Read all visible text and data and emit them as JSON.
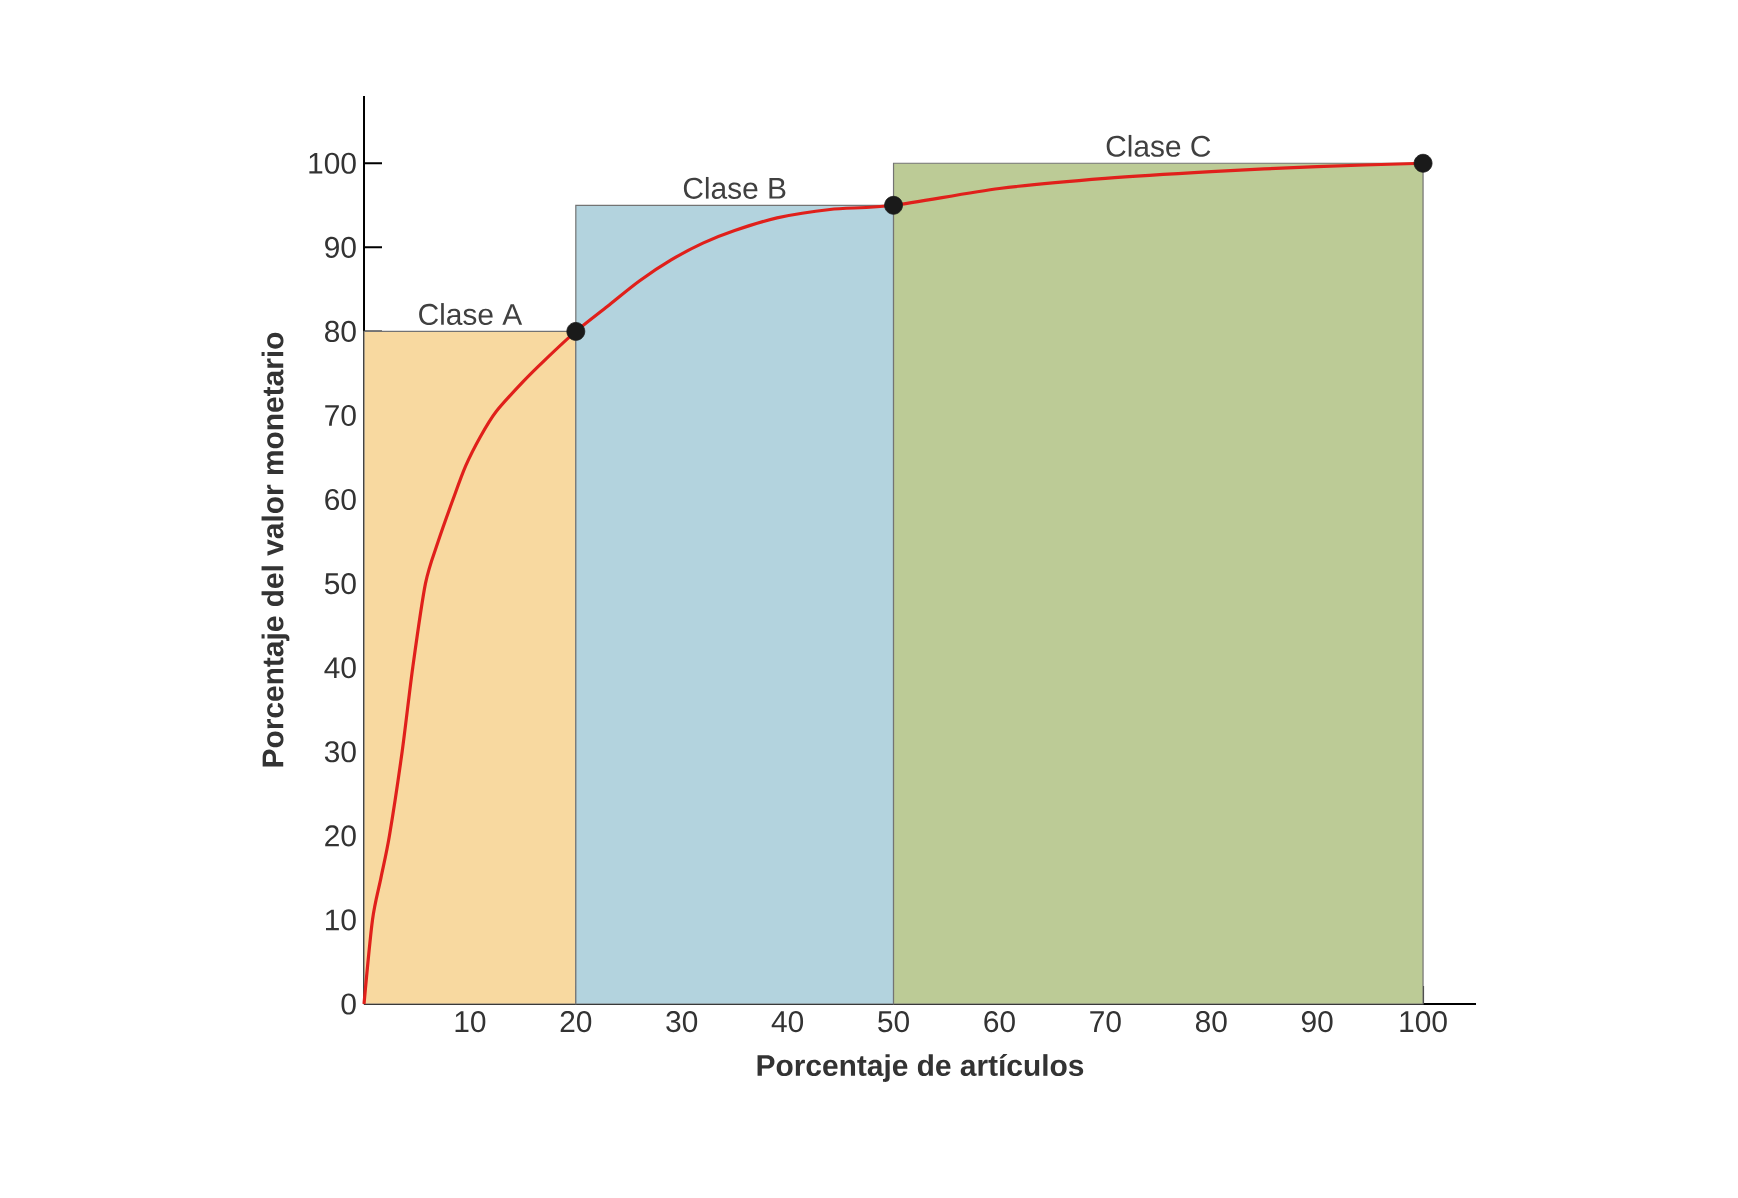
{
  "chart_data": {
    "type": "area",
    "xlabel": "Porcentaje de artículos",
    "ylabel": "Porcentaje del valor monetario",
    "xlim": [
      0,
      105
    ],
    "ylim": [
      0,
      108
    ],
    "xticks": [
      10,
      20,
      30,
      40,
      50,
      60,
      70,
      80,
      90,
      100
    ],
    "yticks": [
      0,
      10,
      20,
      30,
      40,
      50,
      60,
      70,
      80,
      90,
      100
    ],
    "grid": false,
    "series": [
      {
        "name": "Clase A",
        "color": "#f8d9a0",
        "x": [
          0,
          20
        ],
        "values": [
          80,
          80
        ]
      },
      {
        "name": "Clase B",
        "color": "#b3d3de",
        "x": [
          20,
          50
        ],
        "values": [
          95,
          95
        ]
      },
      {
        "name": "Clase C",
        "color": "#bccb96",
        "x": [
          50,
          100
        ],
        "values": [
          100,
          100
        ]
      },
      {
        "type": "line",
        "color": "#e0201b",
        "marker": "none",
        "x": [
          0,
          0.8,
          1.6,
          2.4,
          3.6,
          4.6,
          5.8,
          7,
          8.4,
          9.6,
          11,
          12.5,
          15,
          17,
          20,
          23,
          26,
          29,
          32,
          35,
          39,
          44,
          50,
          60,
          70,
          80,
          90,
          100
        ],
        "values": [
          0,
          10,
          15,
          20,
          30,
          40,
          50,
          55,
          60,
          64,
          67.5,
          70.5,
          74,
          76.5,
          80,
          83,
          86,
          88.5,
          90.5,
          92,
          93.5,
          94.5,
          95,
          97,
          98.2,
          99,
          99.6,
          100
        ]
      },
      {
        "type": "scatter",
        "color": "#1a1a1a",
        "marker": "circle",
        "x": [
          20,
          50,
          100
        ],
        "values": [
          80,
          95,
          100
        ]
      }
    ]
  }
}
